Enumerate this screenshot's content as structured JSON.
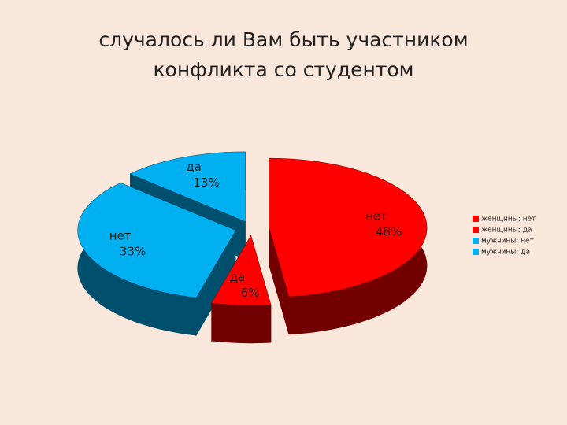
{
  "chart_data": {
    "type": "pie",
    "title": "случалось ли Вам быть участником конфликта со студентом",
    "categories": [
      "женщины; нет",
      "женщины; да",
      "мужчины; нет",
      "мужчины; да"
    ],
    "values": [
      48,
      6,
      33,
      13
    ],
    "value_labels": [
      "48%",
      "6%",
      "33%",
      "13%"
    ],
    "slice_labels": [
      "нет",
      "да",
      "нет",
      "да"
    ],
    "colors": [
      "#ff0000",
      "#ff0000",
      "#00b0f0",
      "#00b0f0"
    ],
    "legend": "right"
  }
}
